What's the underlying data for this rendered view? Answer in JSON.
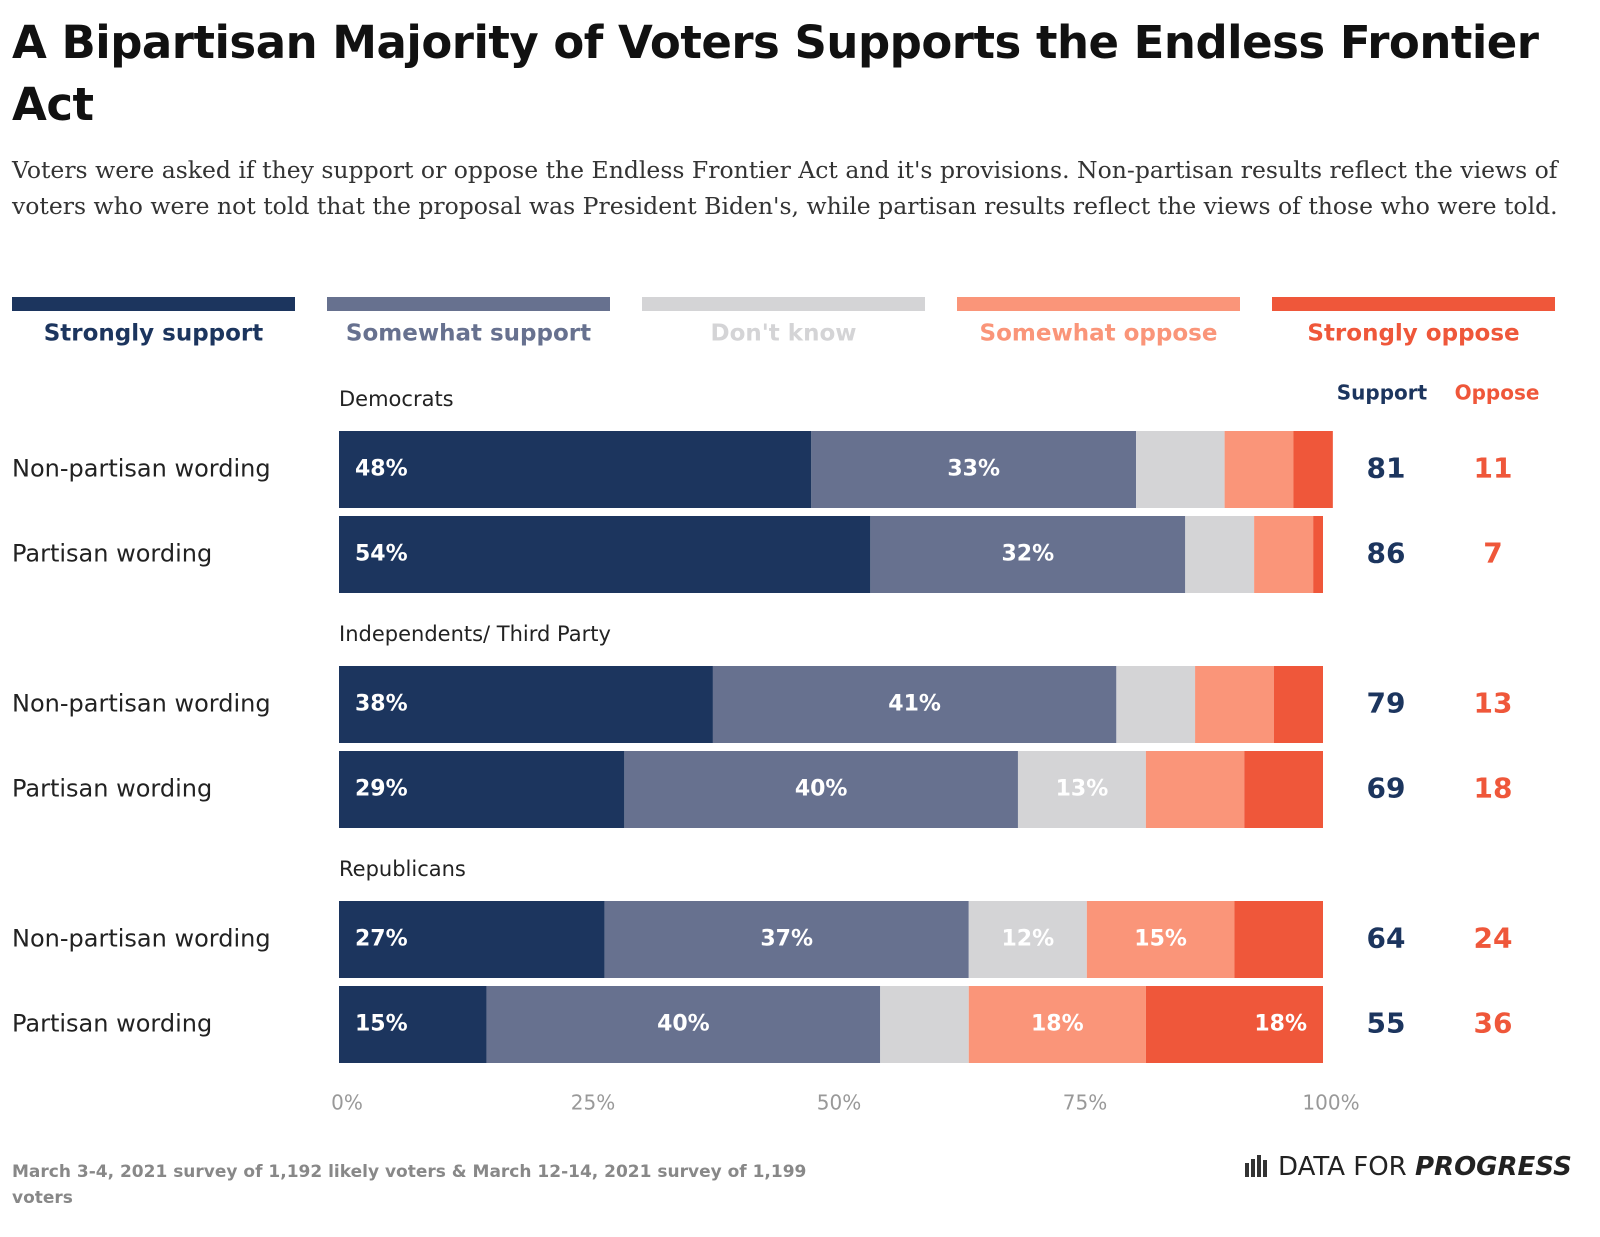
{
  "chart_data": {
    "type": "stacked-bar",
    "orientation": "horizontal",
    "title": "A Bipartisan Majority of Voters Supports the Endless Frontier Act",
    "subtitle": "Voters were asked if they support or oppose the Endless Frontier Act and it's provisions. Non-partisan results reflect the views of voters who were not told that the proposal was President Biden's, while partisan results reflect the views of those who were told.",
    "group_labels": [
      "Democrats",
      "Independents/ Third Party",
      "Republicans"
    ],
    "categories": [
      "Non-partisan wording",
      "Partisan wording",
      "Non-partisan wording",
      "Partisan wording",
      "Non-partisan wording",
      "Partisan wording"
    ],
    "series": [
      {
        "name": "Strongly support",
        "color": "#1c355e",
        "values": [
          48,
          54,
          38,
          29,
          27,
          15
        ],
        "value_labels": [
          "48%",
          "54%",
          "38%",
          "29%",
          "27%",
          "15%"
        ]
      },
      {
        "name": "Somewhat support",
        "color": "#67718f",
        "values": [
          33,
          32,
          41,
          40,
          37,
          40
        ],
        "value_labels": [
          "33%",
          "32%",
          "41%",
          "40%",
          "37%",
          "40%"
        ]
      },
      {
        "name": "Don't know",
        "color": "#d4d4d6",
        "values": [
          9,
          7,
          8,
          13,
          12,
          9
        ],
        "value_labels": [
          null,
          null,
          null,
          "13%",
          "12%",
          null
        ]
      },
      {
        "name": "Somewhat oppose",
        "color": "#fa9579",
        "values": [
          7,
          6,
          8,
          10,
          15,
          18
        ],
        "value_labels": [
          null,
          null,
          null,
          null,
          "15%",
          "18%"
        ]
      },
      {
        "name": "Strongly oppose",
        "color": "#ef573a",
        "values": [
          4,
          1,
          5,
          8,
          9,
          18
        ],
        "value_labels": [
          null,
          null,
          null,
          null,
          null,
          "18%"
        ]
      }
    ],
    "totals": [
      {
        "name": "Support",
        "color": "#1c355e",
        "values": [
          81,
          86,
          79,
          69,
          64,
          55
        ]
      },
      {
        "name": "Oppose",
        "color": "#ef573a",
        "values": [
          11,
          7,
          13,
          18,
          24,
          36
        ]
      }
    ],
    "xlim": [
      0,
      100
    ],
    "xticks": [
      {
        "value": 0,
        "label": "0%"
      },
      {
        "value": 25,
        "label": "25%"
      },
      {
        "value": 50,
        "label": "50%"
      },
      {
        "value": 75,
        "label": "75%"
      },
      {
        "value": 100,
        "label": "100%"
      }
    ],
    "source": "March 3-4, 2021 survey of 1,192 likely voters & March 12-14, 2021 survey of 1,199 voters",
    "brand": {
      "name": "DATA FOR",
      "emphasis": "PROGRESS"
    }
  }
}
